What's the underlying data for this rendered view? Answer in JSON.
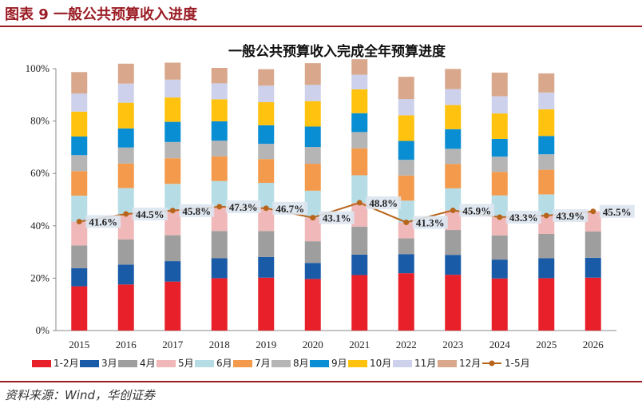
{
  "page": {
    "header_title": "图表 9    一般公共预算收入进度",
    "source": "资料来源：Wind，华创证券"
  },
  "chart_data": {
    "type": "bar",
    "stacked": true,
    "title": "一般公共预算收入完成全年预算进度",
    "xlabel": "",
    "ylabel": "",
    "ylim": [
      0,
      100
    ],
    "y_ticks": [
      "0%",
      "20%",
      "40%",
      "60%",
      "80%",
      "100%"
    ],
    "grid": false,
    "legend_position": "bottom",
    "categories": [
      "2015",
      "2016",
      "2017",
      "2018",
      "2019",
      "2020",
      "2021",
      "2022",
      "2023",
      "2024",
      "2025",
      "2026"
    ],
    "series": [
      {
        "name": "1-2月",
        "color": "#e8202a",
        "values": [
          16.9,
          17.6,
          18.7,
          20.0,
          20.2,
          19.7,
          21.2,
          21.9,
          21.3,
          19.9,
          20.0,
          20.2
        ]
      },
      {
        "name": "3月",
        "color": "#1a5ba8",
        "values": [
          6.9,
          7.6,
          7.8,
          7.6,
          7.9,
          6.1,
          7.8,
          7.3,
          7.6,
          7.2,
          7.6,
          7.6
        ]
      },
      {
        "name": "4月",
        "color": "#9e9e9e",
        "values": [
          8.7,
          9.6,
          9.9,
          10.4,
          9.9,
          8.3,
          10.7,
          6.0,
          9.5,
          9.2,
          9.3,
          10.0
        ]
      },
      {
        "name": "5月",
        "color": "#f0b8b8",
        "values": [
          9.1,
          9.7,
          9.4,
          9.3,
          8.7,
          9.0,
          9.1,
          6.1,
          7.5,
          7.0,
          7.0,
          7.7
        ]
      },
      {
        "name": "6月",
        "color": "#b6dde6",
        "values": [
          9.9,
          9.9,
          10.2,
          9.8,
          9.7,
          10.3,
          10.5,
          8.3,
          8.4,
          8.3,
          8.1,
          null
        ]
      },
      {
        "name": "7月",
        "color": "#f39a4c",
        "values": [
          9.4,
          9.4,
          9.8,
          9.4,
          9.1,
          10.3,
          10.3,
          9.6,
          9.3,
          9.0,
          9.4,
          null
        ]
      },
      {
        "name": "8月",
        "color": "#b5b5b5",
        "values": [
          6.1,
          6.1,
          6.2,
          6.0,
          5.8,
          6.4,
          6.2,
          6.0,
          5.8,
          5.8,
          5.9,
          null
        ]
      },
      {
        "name": "9月",
        "color": "#0a8ed3",
        "values": [
          7.1,
          7.3,
          7.7,
          7.4,
          7.1,
          7.8,
          7.2,
          7.2,
          7.5,
          6.8,
          7.0,
          null
        ]
      },
      {
        "name": "10月",
        "color": "#ffc20e",
        "values": [
          9.5,
          9.8,
          9.3,
          8.4,
          8.8,
          9.7,
          9.1,
          9.8,
          9.2,
          9.7,
          10.2,
          null
        ]
      },
      {
        "name": "11月",
        "color": "#cdd1ec",
        "values": [
          6.9,
          7.3,
          6.8,
          6.1,
          6.3,
          6.2,
          5.6,
          6.2,
          6.1,
          6.6,
          6.4,
          null
        ]
      },
      {
        "name": "12月",
        "color": "#d9a88c",
        "values": [
          8.2,
          7.6,
          6.5,
          5.9,
          6.3,
          8.3,
          5.9,
          8.5,
          7.7,
          9.0,
          7.3,
          null
        ]
      }
    ],
    "line": {
      "name": "1-5月",
      "color": "#b8651c",
      "values": [
        41.6,
        44.5,
        45.8,
        47.3,
        46.7,
        43.1,
        48.8,
        41.3,
        45.9,
        43.3,
        43.9,
        45.5
      ],
      "labels": [
        "41.6%",
        "44.5%",
        "45.8%",
        "47.3%",
        "46.7%",
        "43.1%",
        "48.8%",
        "41.3%",
        "45.9%",
        "43.3%",
        "43.9%",
        "45.5%"
      ]
    }
  }
}
